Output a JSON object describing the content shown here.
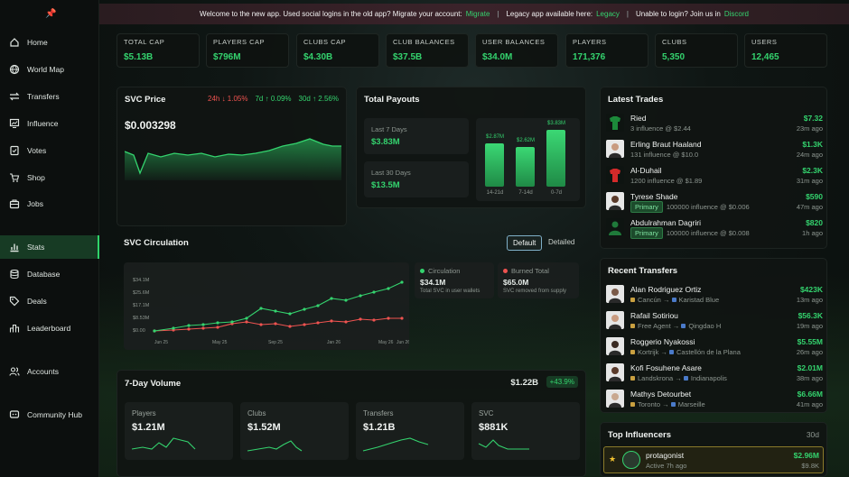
{
  "banner": {
    "welcome": "Welcome to the new app. Used social logins in the old app? Migrate your account:",
    "migrate_link": "Migrate",
    "legacy_text": "Legacy app available here:",
    "legacy_link": "Legacy",
    "login_text": "Unable to login? Join us in",
    "discord_link": "Discord"
  },
  "sidebar": {
    "items": [
      {
        "label": "Home",
        "icon": "home-icon"
      },
      {
        "label": "World Map",
        "icon": "globe-icon"
      },
      {
        "label": "Transfers",
        "icon": "transfer-icon"
      },
      {
        "label": "Influence",
        "icon": "influence-icon"
      },
      {
        "label": "Votes",
        "icon": "votes-icon"
      },
      {
        "label": "Shop",
        "icon": "cart-icon"
      },
      {
        "label": "Jobs",
        "icon": "briefcase-icon"
      },
      {
        "label": "Stats",
        "icon": "bar-chart-icon"
      },
      {
        "label": "Database",
        "icon": "database-icon"
      },
      {
        "label": "Deals",
        "icon": "tag-icon"
      },
      {
        "label": "Leaderboard",
        "icon": "leaderboard-icon"
      },
      {
        "label": "Accounts",
        "icon": "accounts-icon"
      },
      {
        "label": "Community Hub",
        "icon": "community-icon"
      }
    ],
    "active": "Stats"
  },
  "stats": [
    {
      "label": "TOTAL CAP",
      "value": "$5.13B"
    },
    {
      "label": "PLAYERS CAP",
      "value": "$796M"
    },
    {
      "label": "CLUBS CAP",
      "value": "$4.30B"
    },
    {
      "label": "CLUB BALANCES",
      "value": "$37.5B"
    },
    {
      "label": "USER BALANCES",
      "value": "$34.0M"
    },
    {
      "label": "PLAYERS",
      "value": "171,376"
    },
    {
      "label": "CLUBS",
      "value": "5,350"
    },
    {
      "label": "USERS",
      "value": "12,465"
    }
  ],
  "svc_price": {
    "title": "SVC Price",
    "price": "$0.003298",
    "change_24h": "24h ↓ 1.05%",
    "change_7d": "7d ↑ 0.09%",
    "change_30d": "30d ↑ 2.56%"
  },
  "payouts": {
    "title": "Total Payouts",
    "last7_label": "Last 7 Days",
    "last7_value": "$3.83M",
    "last30_label": "Last 30 Days",
    "last30_value": "$13.5M",
    "bars": [
      {
        "label": "14-21d",
        "value": "$2.87M"
      },
      {
        "label": "7-14d",
        "value": "$2.62M"
      },
      {
        "label": "0-7d",
        "value": "$3.83M"
      }
    ]
  },
  "circulation": {
    "title": "SVC Circulation",
    "toggle_default": "Default",
    "toggle_detailed": "Detailed",
    "y_ticks": [
      "$34.1M",
      "$25.6M",
      "$17.1M",
      "$8.53M",
      "$0.00"
    ],
    "x_ticks": [
      "Jun 25",
      "May 25",
      "Sep 25",
      "Jan 26",
      "May 26",
      "Jun 26"
    ],
    "circulation_label": "Circulation",
    "circulation_value": "$34.1M",
    "circulation_desc": "Total SVC in user wallets",
    "burned_label": "Burned Total",
    "burned_value": "$65.0M",
    "burned_desc": "SVC removed from supply",
    "colors": {
      "circulation": "#34d36e",
      "burned": "#ef5350"
    }
  },
  "volume": {
    "title": "7-Day Volume",
    "total": "$1.22B",
    "change": "+43.9%",
    "boxes": [
      {
        "label": "Players",
        "value": "$1.21M"
      },
      {
        "label": "Clubs",
        "value": "$1.52M"
      },
      {
        "label": "Transfers",
        "value": "$1.21B"
      },
      {
        "label": "SVC",
        "value": "$881K"
      }
    ]
  },
  "latest_trades": {
    "title": "Latest Trades",
    "primary_badge": "Primary",
    "rows": [
      {
        "name": "Ried",
        "sub": "3 influence @ $2.44",
        "amount": "$7.32",
        "time": "23m ago",
        "primary": false
      },
      {
        "name": "Erling Braut Haaland",
        "sub": "131 influence @ $10.0",
        "amount": "$1.3K",
        "time": "24m ago",
        "primary": false
      },
      {
        "name": "Al-Duhail",
        "sub": "1200 influence @ $1.89",
        "amount": "$2.3K",
        "time": "31m ago",
        "primary": false
      },
      {
        "name": "Tyrese Shade",
        "sub": "100000 influence @ $0.006",
        "amount": "$590",
        "time": "47m ago",
        "primary": true
      },
      {
        "name": "Abdulrahman Dagriri",
        "sub": "100000 influence @ $0.008",
        "amount": "$820",
        "time": "1h ago",
        "primary": true
      }
    ]
  },
  "recent_transfers": {
    "title": "Recent Transfers",
    "rows": [
      {
        "name": "Alan Rodriguez Ortiz",
        "from": "Cancún",
        "to": "Karistad Blue",
        "amount": "$423K",
        "time": "13m ago"
      },
      {
        "name": "Rafail Sotiriou",
        "from": "Free Agent",
        "to": "Qingdao H",
        "amount": "$56.3K",
        "time": "19m ago"
      },
      {
        "name": "Roggerio Nyakossi",
        "from": "Kortrijk",
        "to": "Castellón de la Plana",
        "amount": "$5.55M",
        "time": "26m ago"
      },
      {
        "name": "Kofi Fosuhene Asare",
        "from": "Landskrona",
        "to": "Indianapolis",
        "amount": "$2.01M",
        "time": "38m ago"
      },
      {
        "name": "Mathys Detourbet",
        "from": "Toronto",
        "to": "Marseille",
        "amount": "$6.66M",
        "time": "41m ago"
      }
    ]
  },
  "top_influencers": {
    "title": "Top Influencers",
    "period": "30d",
    "rows": [
      {
        "name": "protagonist",
        "sub": "Active 7h ago",
        "amount": "$2.96M",
        "secondary": "$9.8K"
      }
    ]
  }
}
